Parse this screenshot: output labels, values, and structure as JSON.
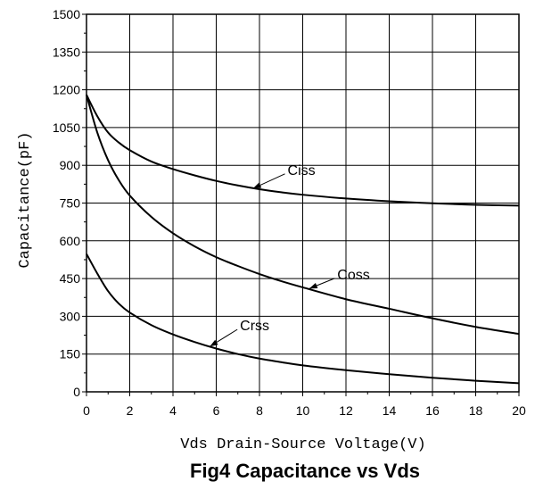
{
  "chart_data": {
    "type": "line",
    "title": "Fig4 Capacitance vs Vds",
    "xlabel": "Vds Drain-Source Voltage(V)",
    "ylabel": "Capacitance(pF)",
    "xlim": [
      0,
      20
    ],
    "ylim": [
      0,
      1500
    ],
    "xticks": [
      0,
      2,
      4,
      6,
      8,
      10,
      12,
      14,
      16,
      18,
      20
    ],
    "yticks": [
      0,
      150,
      300,
      450,
      600,
      750,
      900,
      1050,
      1200,
      1350,
      1500
    ],
    "grid": true,
    "series": [
      {
        "name": "Ciss",
        "x": [
          0,
          0.5,
          1,
          1.5,
          2,
          3,
          4,
          5,
          6,
          7,
          8,
          9,
          10,
          12,
          14,
          16,
          18,
          20
        ],
        "y": [
          1180,
          1095,
          1030,
          990,
          960,
          915,
          885,
          860,
          838,
          820,
          805,
          793,
          783,
          768,
          757,
          749,
          743,
          740
        ]
      },
      {
        "name": "Coss",
        "x": [
          0,
          0.5,
          1,
          1.5,
          2,
          3,
          4,
          5,
          6,
          7,
          8,
          9,
          10,
          12,
          14,
          16,
          18,
          20
        ],
        "y": [
          1180,
          1030,
          920,
          840,
          780,
          695,
          630,
          578,
          535,
          500,
          468,
          440,
          415,
          368,
          330,
          292,
          258,
          230
        ]
      },
      {
        "name": "Crss",
        "x": [
          0,
          0.5,
          1,
          1.5,
          2,
          3,
          4,
          5,
          6,
          7,
          8,
          9,
          10,
          12,
          14,
          16,
          18,
          20
        ],
        "y": [
          548,
          470,
          400,
          350,
          315,
          265,
          228,
          198,
          172,
          150,
          132,
          118,
          105,
          86,
          70,
          56,
          44,
          34
        ]
      }
    ],
    "annotations": [
      {
        "text": "Ciss",
        "series": "Ciss",
        "point_x": 7.7,
        "point_y": 808,
        "label_x": 9.3,
        "label_y": 880
      },
      {
        "text": "Coss",
        "series": "Coss",
        "point_x": 10.3,
        "point_y": 410,
        "label_x": 11.6,
        "label_y": 465
      },
      {
        "text": "Crss",
        "series": "Crss",
        "point_x": 5.7,
        "point_y": 180,
        "label_x": 7.1,
        "label_y": 262
      }
    ]
  }
}
